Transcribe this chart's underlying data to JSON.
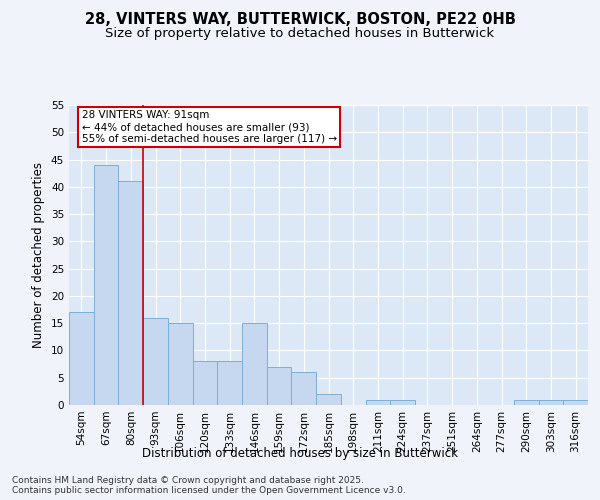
{
  "title_line1": "28, VINTERS WAY, BUTTERWICK, BOSTON, PE22 0HB",
  "title_line2": "Size of property relative to detached houses in Butterwick",
  "xlabel": "Distribution of detached houses by size in Butterwick",
  "ylabel": "Number of detached properties",
  "categories": [
    "54sqm",
    "67sqm",
    "80sqm",
    "93sqm",
    "106sqm",
    "120sqm",
    "133sqm",
    "146sqm",
    "159sqm",
    "172sqm",
    "185sqm",
    "198sqm",
    "211sqm",
    "224sqm",
    "237sqm",
    "251sqm",
    "264sqm",
    "277sqm",
    "290sqm",
    "303sqm",
    "316sqm"
  ],
  "values": [
    17,
    44,
    41,
    16,
    15,
    8,
    8,
    15,
    7,
    6,
    2,
    0,
    1,
    1,
    0,
    0,
    0,
    0,
    1,
    1,
    1
  ],
  "bar_color": "#c5d8f0",
  "bar_edge_color": "#7bafd4",
  "vline_x_idx": 2.5,
  "vline_color": "#cc0000",
  "annotation_text": "28 VINTERS WAY: 91sqm\n← 44% of detached houses are smaller (93)\n55% of semi-detached houses are larger (117) →",
  "annotation_box_color": "#ffffff",
  "annotation_box_edge_color": "#cc0000",
  "ylim": [
    0,
    55
  ],
  "yticks": [
    0,
    5,
    10,
    15,
    20,
    25,
    30,
    35,
    40,
    45,
    50,
    55
  ],
  "plot_bg_color": "#dce8f5",
  "grid_color": "#ffffff",
  "fig_bg_color": "#f0f4fa",
  "footer_line1": "Contains HM Land Registry data © Crown copyright and database right 2025.",
  "footer_line2": "Contains public sector information licensed under the Open Government Licence v3.0.",
  "title_fontsize": 10.5,
  "subtitle_fontsize": 9.5,
  "axis_label_fontsize": 8.5,
  "tick_fontsize": 7.5,
  "annotation_fontsize": 7.5,
  "footer_fontsize": 6.5
}
